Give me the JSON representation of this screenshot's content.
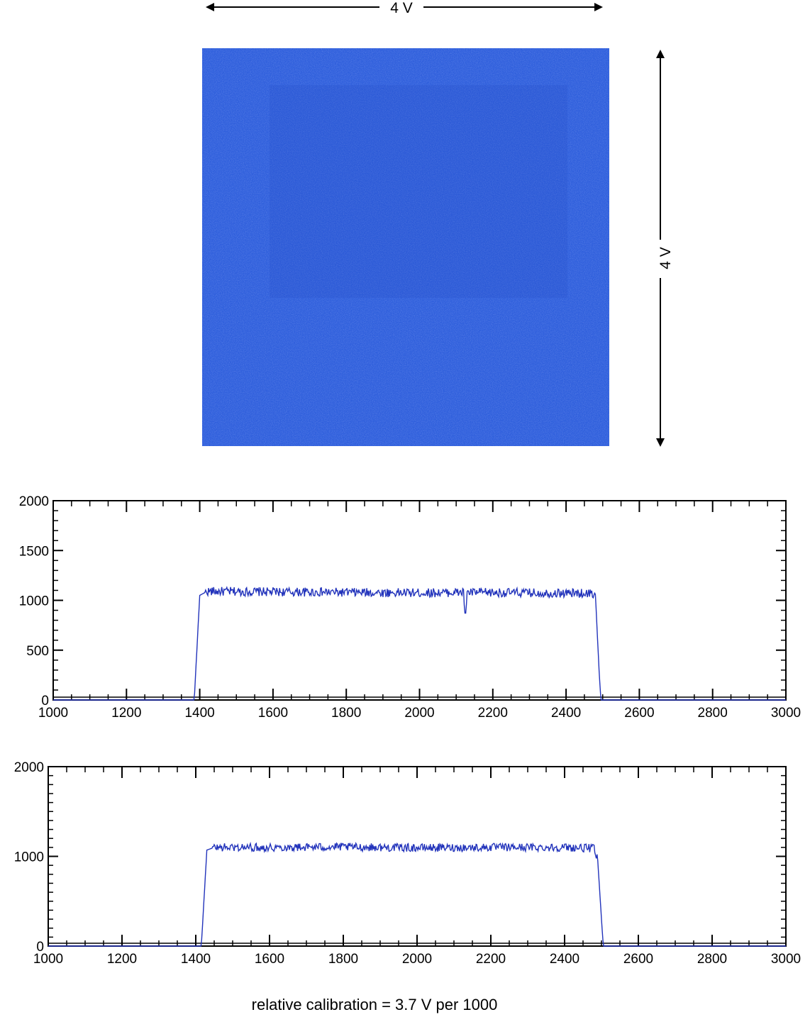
{
  "scan_image": {
    "color": "#2f5fdc",
    "dark_color": "#2448c0",
    "light_color": "#4a7ae6"
  },
  "dimensions": {
    "horizontal_label": "4 V",
    "vertical_label": "4 V"
  },
  "caption": "relative calibration = 3.7 V per 1000",
  "colors": {
    "trace": "#2233bb",
    "axis": "#000000"
  },
  "chart_data": [
    {
      "type": "line",
      "xlim": [
        1000,
        3000
      ],
      "ylim": [
        0,
        2000
      ],
      "x_ticks": [
        "1000",
        "1200",
        "1400",
        "1600",
        "1800",
        "2000",
        "2200",
        "2400",
        "2600",
        "2800",
        "3000"
      ],
      "y_ticks": [
        "0",
        "500",
        "1000",
        "1500",
        "2000"
      ],
      "series": [
        {
          "plateau_start": 1395,
          "plateau_end": 2490,
          "level": 1080,
          "points": [
            [
              1000,
              0
            ],
            [
              1385,
              0
            ],
            [
              1390,
              350
            ],
            [
              1400,
              1050
            ],
            [
              1420,
              1090
            ],
            [
              1600,
              1085
            ],
            [
              1800,
              1080
            ],
            [
              2000,
              1075
            ],
            [
              2120,
              1080
            ],
            [
              2125,
              820
            ],
            [
              2130,
              1080
            ],
            [
              2300,
              1075
            ],
            [
              2470,
              1070
            ],
            [
              2480,
              1060
            ],
            [
              2490,
              300
            ],
            [
              2495,
              0
            ],
            [
              3000,
              0
            ]
          ]
        }
      ]
    },
    {
      "type": "line",
      "xlim": [
        1000,
        3000
      ],
      "ylim": [
        0,
        2000
      ],
      "x_ticks": [
        "1000",
        "1200",
        "1400",
        "1600",
        "1800",
        "2000",
        "2200",
        "2400",
        "2600",
        "2800",
        "3000"
      ],
      "y_ticks": [
        "0",
        "1000",
        "2000"
      ],
      "series": [
        {
          "plateau_start": 1425,
          "plateau_end": 2500,
          "level": 1100,
          "points": [
            [
              1000,
              0
            ],
            [
              1415,
              0
            ],
            [
              1420,
              350
            ],
            [
              1430,
              1070
            ],
            [
              1450,
              1100
            ],
            [
              1600,
              1100
            ],
            [
              1800,
              1105
            ],
            [
              2000,
              1095
            ],
            [
              2200,
              1100
            ],
            [
              2400,
              1100
            ],
            [
              2480,
              1090
            ],
            [
              2490,
              950
            ],
            [
              2500,
              300
            ],
            [
              2505,
              0
            ],
            [
              3000,
              0
            ]
          ]
        }
      ]
    }
  ]
}
